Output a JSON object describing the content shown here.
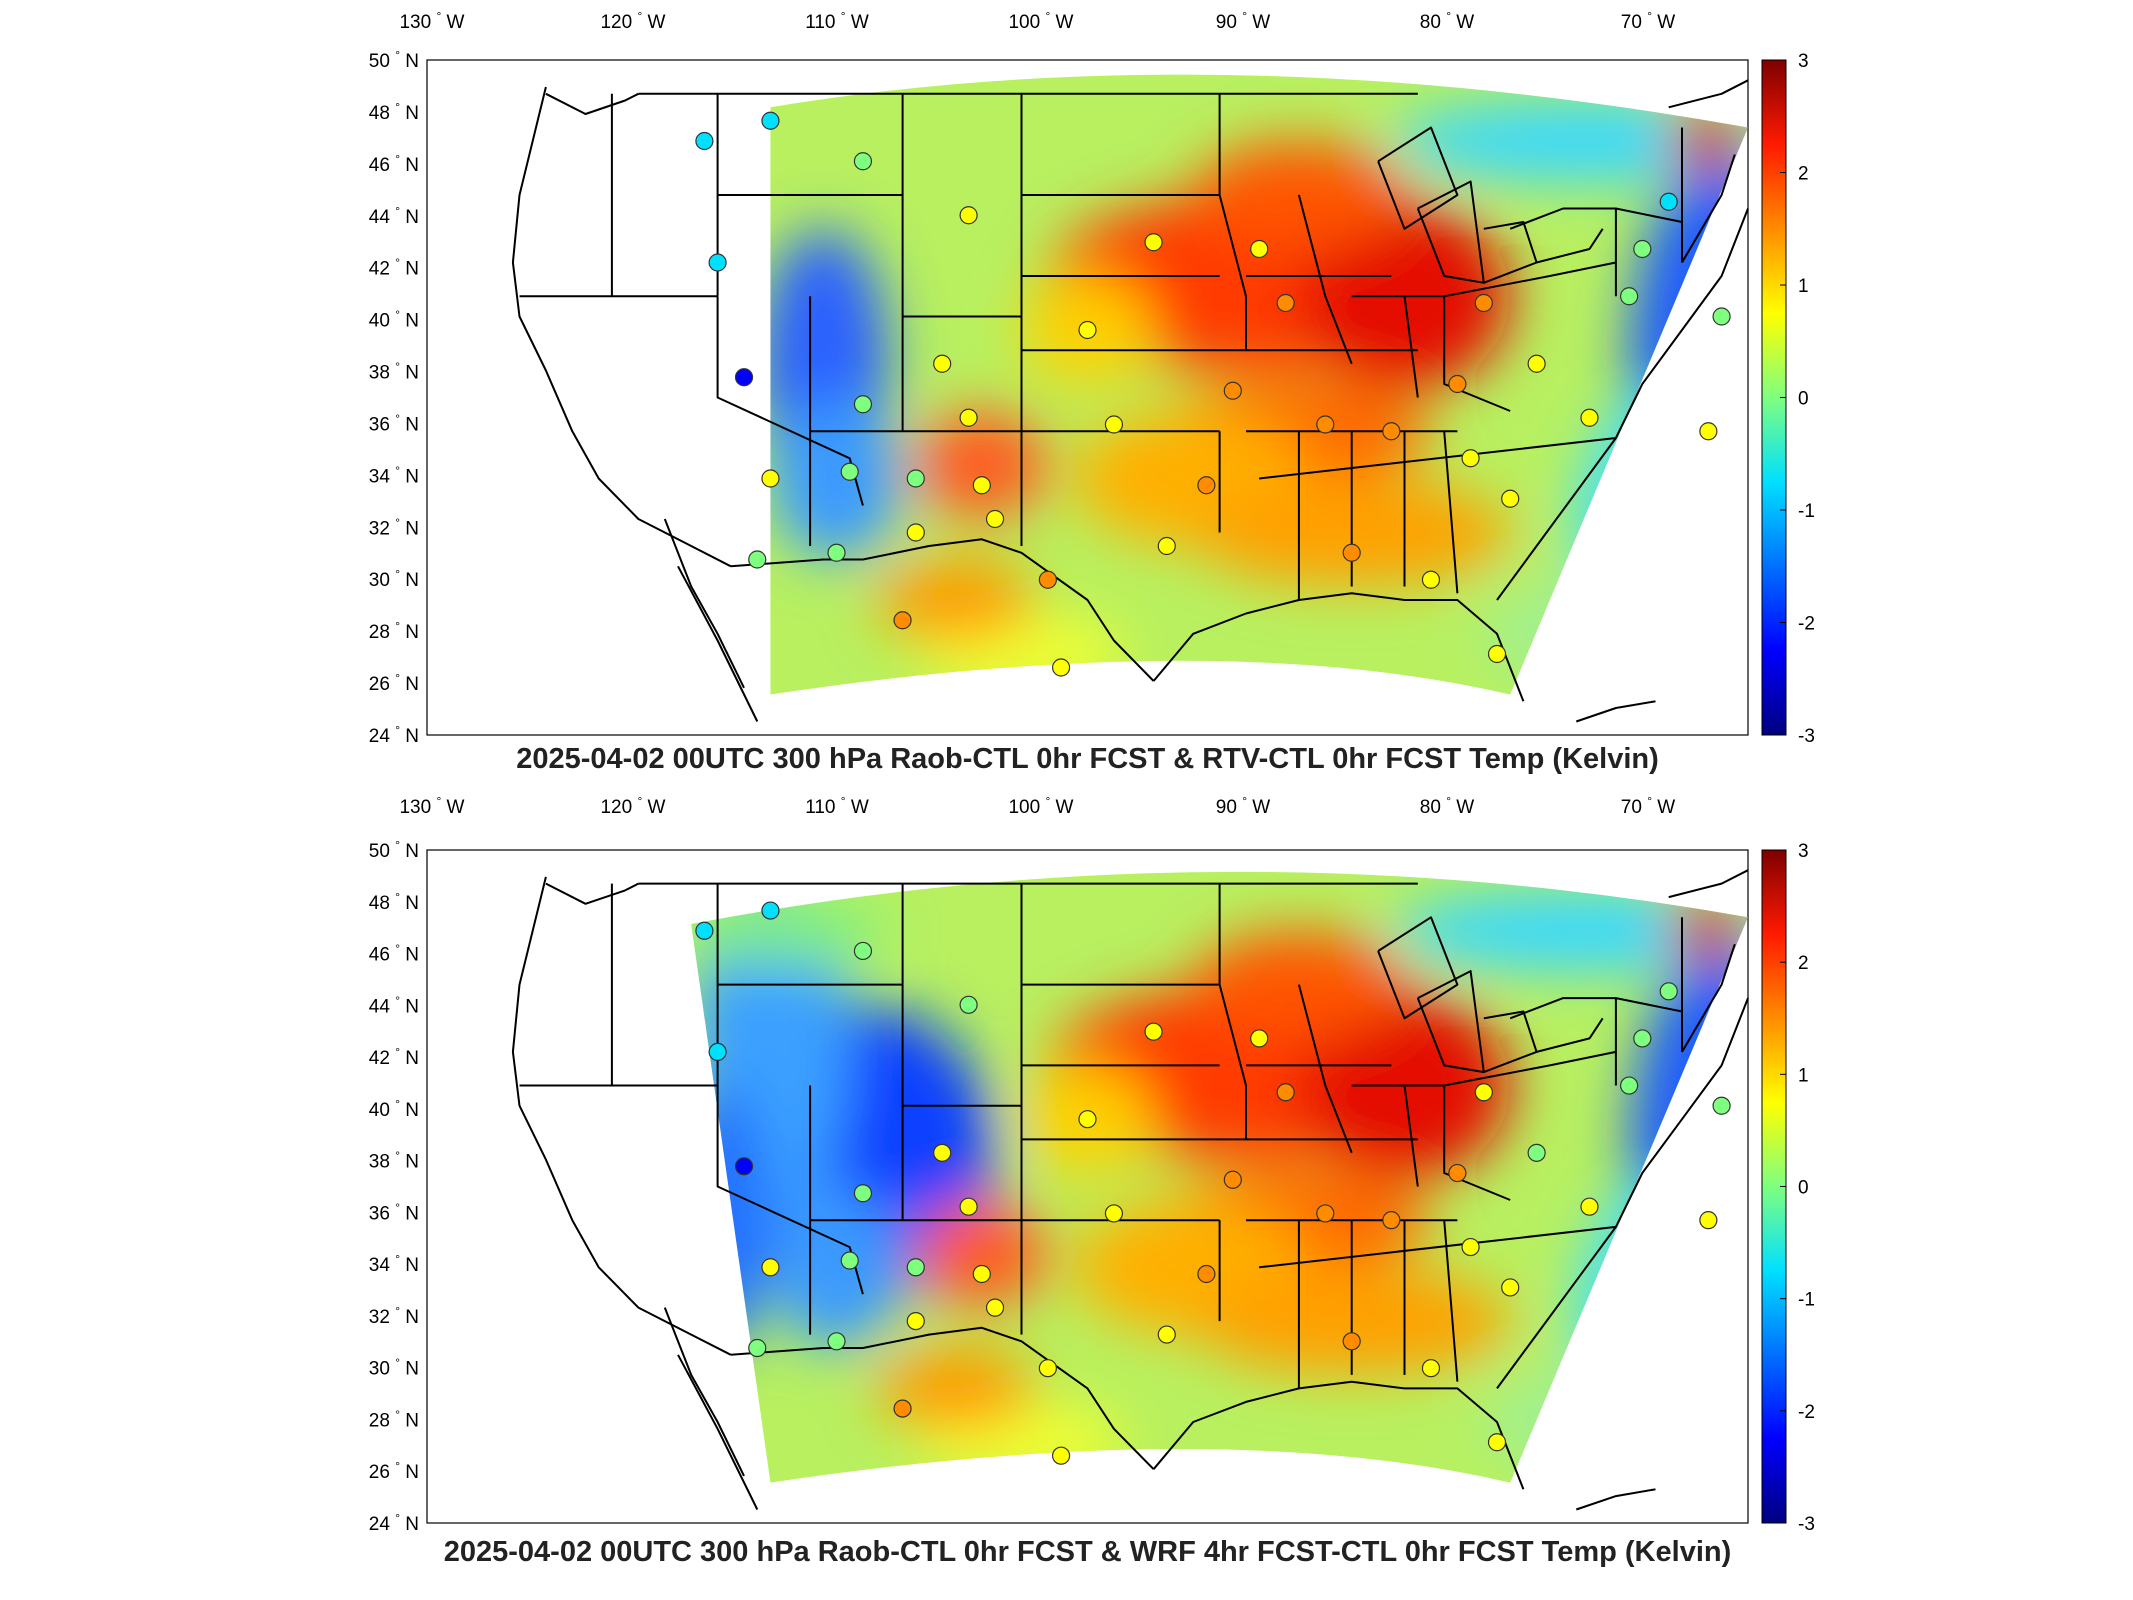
{
  "panels": [
    {
      "title": "2025-04-02 00UTC 300 hPa Raob-CTL 0hr FCST & RTV-CTL 0hr FCST Temp (Kelvin)",
      "coverage": "narrow"
    },
    {
      "title": "2025-04-02 00UTC 300 hPa Raob-CTL 0hr FCST & WRF 4hr FCST-CTL 0hr FCST Temp (Kelvin)",
      "coverage": "wide"
    }
  ],
  "lon_ticks": [
    {
      "deg": "130",
      "hem": "W"
    },
    {
      "deg": "120",
      "hem": "W"
    },
    {
      "deg": "110",
      "hem": "W"
    },
    {
      "deg": "100",
      "hem": "W"
    },
    {
      "deg": "90",
      "hem": "W"
    },
    {
      "deg": "80",
      "hem": "W"
    },
    {
      "deg": "70",
      "hem": "W"
    }
  ],
  "lat_ticks": [
    {
      "deg": "50",
      "hem": "N"
    },
    {
      "deg": "48",
      "hem": "N"
    },
    {
      "deg": "46",
      "hem": "N"
    },
    {
      "deg": "44",
      "hem": "N"
    },
    {
      "deg": "42",
      "hem": "N"
    },
    {
      "deg": "40",
      "hem": "N"
    },
    {
      "deg": "38",
      "hem": "N"
    },
    {
      "deg": "36",
      "hem": "N"
    },
    {
      "deg": "34",
      "hem": "N"
    },
    {
      "deg": "32",
      "hem": "N"
    },
    {
      "deg": "30",
      "hem": "N"
    },
    {
      "deg": "28",
      "hem": "N"
    },
    {
      "deg": "26",
      "hem": "N"
    },
    {
      "deg": "24",
      "hem": "N"
    }
  ],
  "colorbar": {
    "range": [
      -3,
      3
    ],
    "ticks": [
      "3",
      "2",
      "1",
      "0",
      "-1",
      "-2",
      "-3"
    ],
    "colors": [
      "#00007f",
      "#0000ff",
      "#007fff",
      "#00ffff",
      "#7fff7f",
      "#ffff00",
      "#ff7f00",
      "#ff0000",
      "#7f0000"
    ]
  }
}
